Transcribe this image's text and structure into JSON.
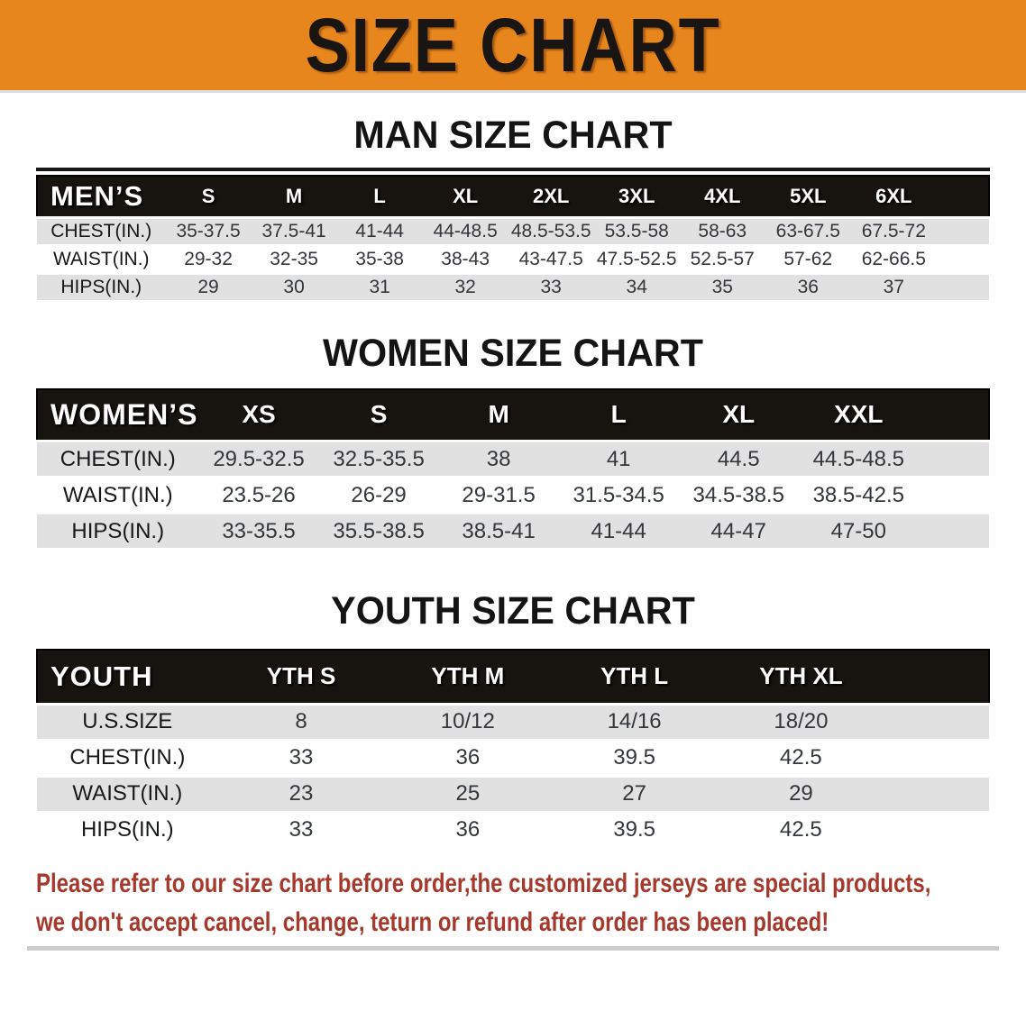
{
  "banner": {
    "title": "SIZE CHART",
    "bg_note": "orange banner with black title"
  },
  "colors": {
    "banner_bg": "#E8861E",
    "header_bar": "#17140F",
    "stripe": "#E1E1E1",
    "disclaimer": "#A6392E"
  },
  "sections": [
    {
      "heading": "MAN SIZE CHART",
      "table": {
        "header_label": "MEN’S",
        "columns": [
          "S",
          "M",
          "L",
          "XL",
          "2XL",
          "3XL",
          "4XL",
          "5XL",
          "6XL"
        ],
        "rows": [
          {
            "label": "CHEST(IN.)",
            "values": [
              "35-37.5",
              "37.5-41",
              "41-44",
              "44-48.5",
              "48.5-53.5",
              "53.5-58",
              "58-63",
              "63-67.5",
              "67.5-72"
            ]
          },
          {
            "label": "WAIST(IN.)",
            "values": [
              "29-32",
              "32-35",
              "35-38",
              "38-43",
              "43-47.5",
              "47.5-52.5",
              "52.5-57",
              "57-62",
              "62-66.5"
            ]
          },
          {
            "label": "HIPS(IN.)",
            "values": [
              "29",
              "30",
              "31",
              "32",
              "33",
              "34",
              "35",
              "36",
              "37"
            ]
          }
        ]
      }
    },
    {
      "heading": "WOMEN SIZE CHART",
      "table": {
        "header_label": "WOMEN’S",
        "columns": [
          "XS",
          "S",
          "M",
          "L",
          "XL",
          "XXL"
        ],
        "rows": [
          {
            "label": "CHEST(IN.)",
            "values": [
              "29.5-32.5",
              "32.5-35.5",
              "38",
              "41",
              "44.5",
              "44.5-48.5"
            ]
          },
          {
            "label": "WAIST(IN.)",
            "values": [
              "23.5-26",
              "26-29",
              "29-31.5",
              "31.5-34.5",
              "34.5-38.5",
              "38.5-42.5"
            ]
          },
          {
            "label": "HIPS(IN.)",
            "values": [
              "33-35.5",
              "35.5-38.5",
              "38.5-41",
              "41-44",
              "44-47",
              "47-50"
            ]
          }
        ]
      }
    },
    {
      "heading": "YOUTH SIZE CHART",
      "table": {
        "header_label": "YOUTH",
        "columns": [
          "YTH S",
          "YTH M",
          "YTH L",
          "YTH XL"
        ],
        "rows": [
          {
            "label": "U.S.SIZE",
            "values": [
              "8",
              "10/12",
              "14/16",
              "18/20"
            ]
          },
          {
            "label": "CHEST(IN.)",
            "values": [
              "33",
              "36",
              "39.5",
              "42.5"
            ]
          },
          {
            "label": "WAIST(IN.)",
            "values": [
              "23",
              "25",
              "27",
              "29"
            ]
          },
          {
            "label": "HIPS(IN.)",
            "values": [
              "33",
              "36",
              "39.5",
              "42.5"
            ]
          }
        ]
      }
    }
  ],
  "disclaimer": {
    "line1": "Please refer to our size chart before order,the customized jerseys are special products,",
    "line2": "we don't accept cancel, change, teturn or refund after order has been placed!"
  }
}
